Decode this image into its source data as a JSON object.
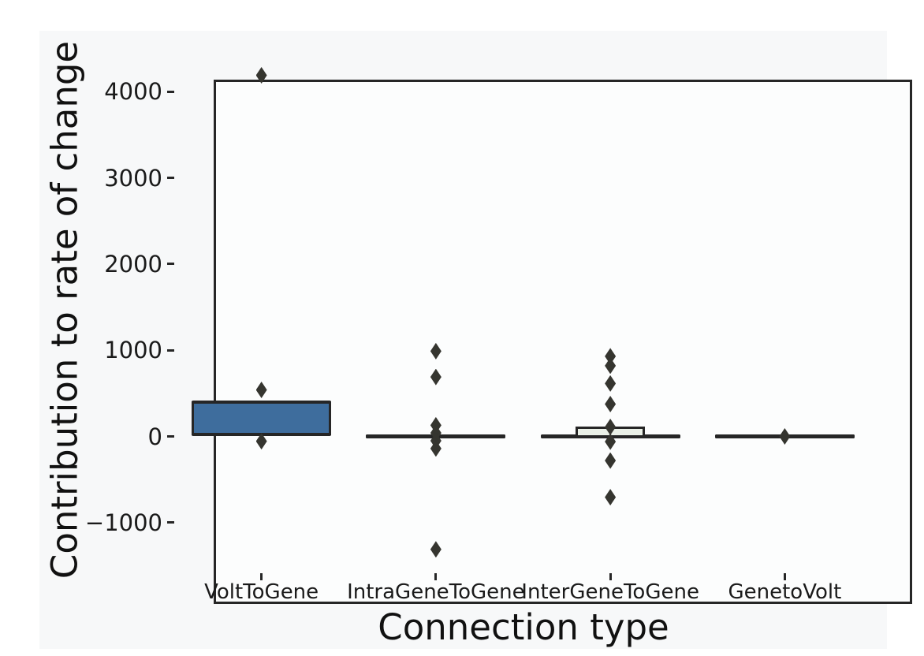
{
  "chart_data": {
    "type": "box",
    "orientation": "vertical",
    "title": "",
    "xlabel": "Connection type",
    "ylabel": "Contribution to rate of change",
    "categories": [
      "VoltToGene",
      "IntraGeneToGene",
      "InterGeneToGene",
      "GenetoVolt"
    ],
    "ylim": [
      -1573,
      4483
    ],
    "grid": false,
    "legend": null,
    "yticks": [
      {
        "v": 4000,
        "label": "4000"
      },
      {
        "v": 3000,
        "label": "3000"
      },
      {
        "v": 2000,
        "label": "2000"
      },
      {
        "v": 1000,
        "label": "1000"
      },
      {
        "v": 0,
        "label": "0"
      },
      {
        "v": -1000,
        "label": "−1000"
      }
    ],
    "series": [
      {
        "name": "VoltToGene",
        "q1": 25,
        "median": 30,
        "q3": 394,
        "whisker_low": 25,
        "whisker_high": 394,
        "fliers": [
          4190,
          540,
          -55
        ],
        "box_fill": "#3e6d9d",
        "box_width_frac": 0.8,
        "cap_width_frac": 0.8
      },
      {
        "name": "IntraGeneToGene",
        "q1": 0,
        "median": 0,
        "q3": 0,
        "whisker_low": 0,
        "whisker_high": 0,
        "fliers": [
          990,
          690,
          130,
          40,
          -50,
          -140,
          -1310
        ],
        "box_fill": "#eaf0e7",
        "box_width_frac": 0.8,
        "cap_width_frac": 0.8
      },
      {
        "name": "InterGeneToGene",
        "q1": 0,
        "median": 0,
        "q3": 101,
        "whisker_low": 0,
        "whisker_high": 0,
        "fliers": [
          930,
          820,
          615,
          375,
          110,
          -60,
          -280,
          -705
        ],
        "box_fill": "#eaf0e7",
        "box_width_frac": 0.4,
        "cap_width_frac": 0.8
      },
      {
        "name": "GenetoVolt",
        "q1": 0,
        "median": 0,
        "q3": 0,
        "whisker_low": 0,
        "whisker_high": 0,
        "fliers": [
          0
        ],
        "box_fill": "#eaf0e7",
        "box_width_frac": 0.8,
        "cap_width_frac": 0.8
      }
    ],
    "colors": {
      "box_blue": "#3e6d9d",
      "box_pale_green": "#eaf0e7",
      "line": "#262626",
      "flier": "#35352f",
      "canvas_bg": "#f7f8f9",
      "text": "#1a1a1a"
    }
  }
}
